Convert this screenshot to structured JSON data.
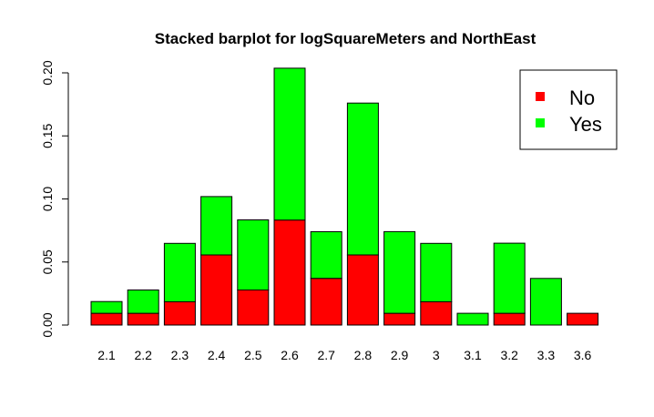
{
  "chart_data": {
    "type": "bar",
    "stacked": true,
    "title": "Stacked barplot for logSquareMeters and NorthEast",
    "xlabel": "",
    "ylabel": "",
    "categories": [
      "2.1",
      "2.2",
      "2.3",
      "2.4",
      "2.5",
      "2.6",
      "2.7",
      "2.8",
      "2.9",
      "3",
      "3.1",
      "3.2",
      "3.3",
      "3.6"
    ],
    "series": [
      {
        "name": "No",
        "color": "#ff0000",
        "values": [
          0.0093,
          0.0093,
          0.0185,
          0.0556,
          0.0278,
          0.0833,
          0.037,
          0.0556,
          0.0093,
          0.0185,
          0.0,
          0.0093,
          0.0,
          0.0093
        ]
      },
      {
        "name": "Yes",
        "color": "#00ff00",
        "values": [
          0.0093,
          0.0185,
          0.0463,
          0.0463,
          0.0556,
          0.1204,
          0.037,
          0.1204,
          0.0648,
          0.0463,
          0.0093,
          0.0556,
          0.037,
          0.0
        ]
      }
    ],
    "ylim": [
      0,
      0.2
    ],
    "yticks": [
      "0.00",
      "0.05",
      "0.10",
      "0.15",
      "0.20"
    ],
    "grid": false,
    "legend_position": "top-right"
  }
}
